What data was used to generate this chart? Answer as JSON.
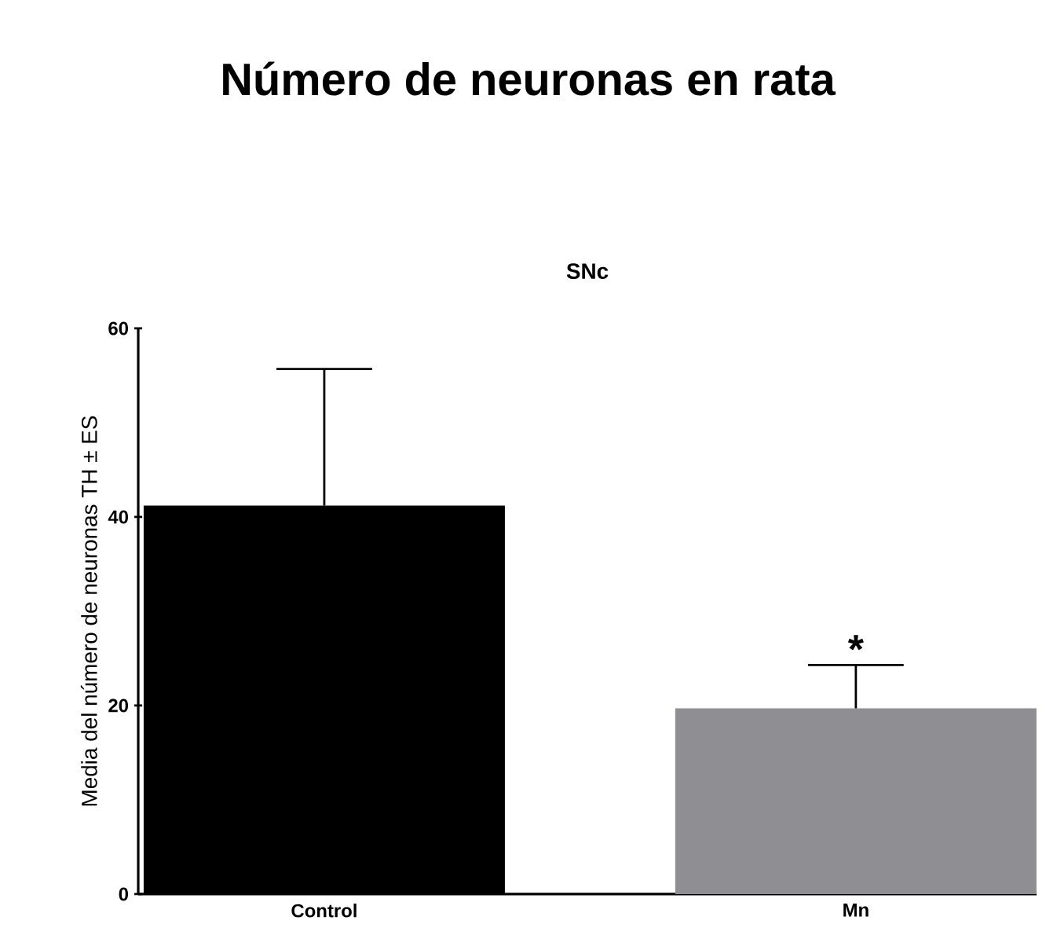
{
  "chart_data": {
    "type": "bar",
    "title": "Número de neuronas en rata",
    "subtitle": "SNc",
    "ylabel": "Media del número de neuronas TH  ± ES",
    "categories": [
      "Control",
      "Mn"
    ],
    "values": [
      41.2,
      19.7
    ],
    "colors": [
      "#000000",
      "#8e8e93"
    ],
    "errors": [
      [
        41.2,
        55.7
      ],
      [
        19.7,
        24.3
      ]
    ],
    "ylim": [
      0,
      60
    ],
    "yticks": [
      0,
      20,
      40,
      60
    ],
    "annotations": [
      "*"
    ],
    "grid": false
  }
}
